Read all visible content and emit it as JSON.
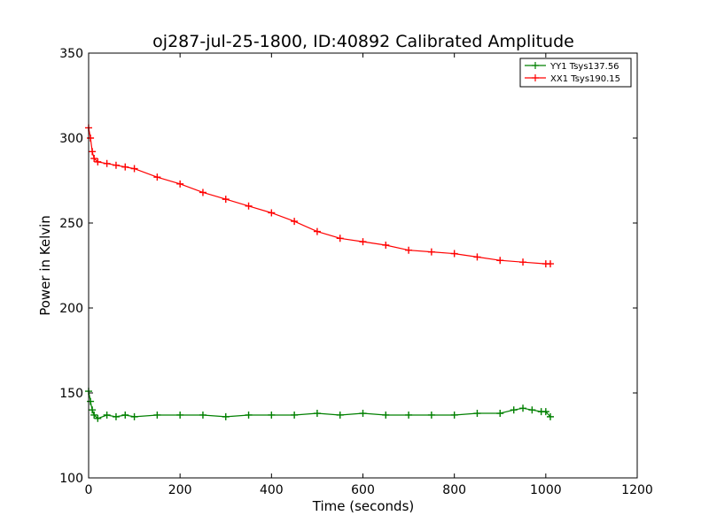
{
  "chart_data": {
    "type": "line",
    "title": "oj287-jul-25-1800, ID:40892 Calibrated Amplitude",
    "xlabel": "Time (seconds)",
    "ylabel": "Power in Kelvin",
    "xlim": [
      0,
      1200
    ],
    "ylim": [
      100,
      350
    ],
    "xticks": [
      0,
      200,
      400,
      600,
      800,
      1000,
      1200
    ],
    "yticks": [
      100,
      150,
      200,
      250,
      300,
      350
    ],
    "grid": false,
    "legend_position": "top-right",
    "marker": "+",
    "series": [
      {
        "name": "YY1 Tsys137.56",
        "color": "#008000",
        "x": [
          0,
          4,
          8,
          12,
          20,
          40,
          60,
          80,
          100,
          150,
          200,
          250,
          300,
          350,
          400,
          450,
          500,
          550,
          600,
          650,
          700,
          750,
          800,
          850,
          900,
          930,
          950,
          970,
          990,
          1000,
          1010
        ],
        "values": [
          151,
          145,
          140,
          137,
          135,
          137,
          136,
          137,
          136,
          137,
          137,
          137,
          136,
          137,
          137,
          137,
          138,
          137,
          138,
          137,
          137,
          137,
          137,
          138,
          138,
          140,
          141,
          140,
          139,
          139,
          136
        ]
      },
      {
        "name": "XX1 Tsys190.15",
        "color": "#ff0000",
        "x": [
          0,
          4,
          8,
          12,
          20,
          40,
          60,
          80,
          100,
          150,
          200,
          250,
          300,
          350,
          400,
          450,
          500,
          550,
          600,
          650,
          700,
          750,
          800,
          850,
          900,
          950,
          1000,
          1010
        ],
        "values": [
          306,
          300,
          292,
          288,
          286,
          285,
          284,
          283,
          282,
          277,
          273,
          268,
          264,
          260,
          256,
          251,
          245,
          241,
          239,
          237,
          234,
          233,
          232,
          230,
          228,
          227,
          226,
          226
        ]
      }
    ]
  }
}
